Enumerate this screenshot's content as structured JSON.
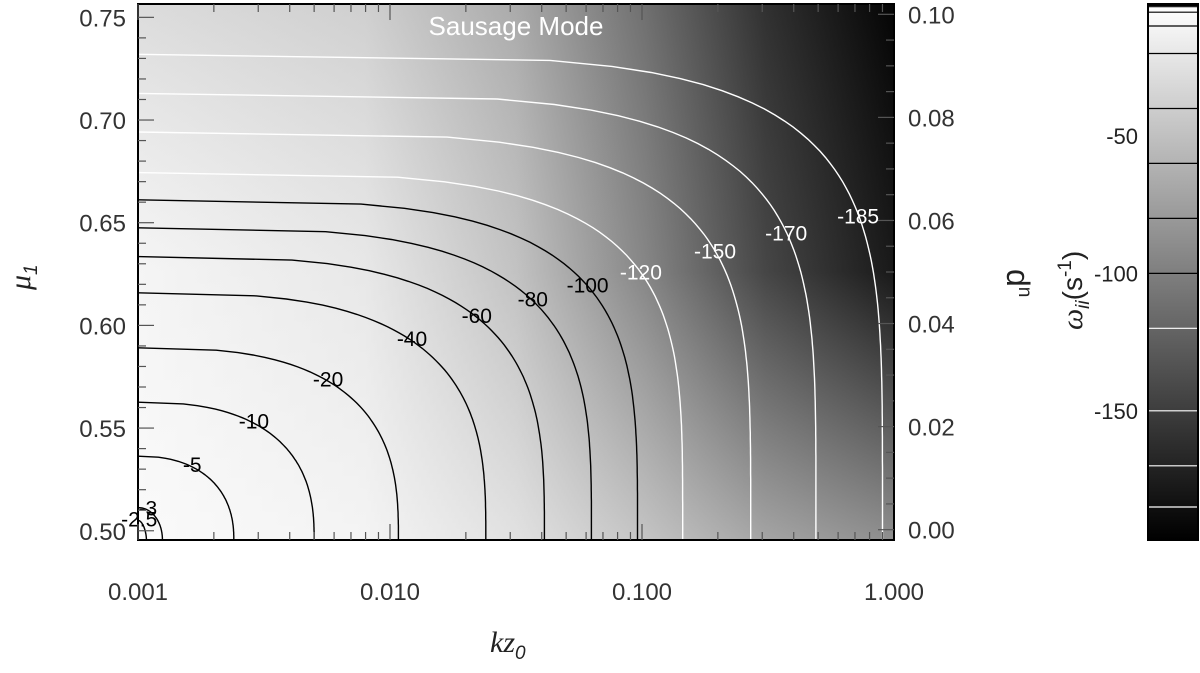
{
  "chart_data": {
    "type": "contour",
    "title": "Sausage Mode",
    "x_axis": {
      "label_main": "kz",
      "label_sub": "0",
      "scale": "log",
      "range": [
        0.001,
        1.0
      ],
      "ticks": [
        "0.001",
        "0.010",
        "0.100",
        "1.000"
      ],
      "tick_values": [
        0.001,
        0.01,
        0.1,
        1.0
      ]
    },
    "y_axis_left": {
      "label_main": "μ",
      "label_sub": "1",
      "range": [
        0.4955,
        0.7565
      ],
      "ticks": [
        "0.50",
        "0.55",
        "0.60",
        "0.65",
        "0.70",
        "0.75"
      ],
      "tick_values": [
        0.5,
        0.55,
        0.6,
        0.65,
        0.7,
        0.75
      ]
    },
    "y_axis_right": {
      "label_main": "d",
      "label_sub": "n",
      "range": [
        -0.002,
        0.102
      ],
      "ticks": [
        "0.00",
        "0.02",
        "0.04",
        "0.06",
        "0.08",
        "0.10"
      ],
      "tick_values": [
        0.0,
        0.02,
        0.04,
        0.06,
        0.08,
        0.1
      ]
    },
    "contours": [
      {
        "label": "-2.5",
        "x_at_bottom": 0.00108
      },
      {
        "label": "-3",
        "x_at_bottom": 0.00125
      },
      {
        "label": "-5",
        "x_at_bottom": 0.0024
      },
      {
        "label": "-10",
        "x_at_bottom": 0.005
      },
      {
        "label": "-20",
        "x_at_bottom": 0.0108
      },
      {
        "label": "-40",
        "x_at_bottom": 0.024
      },
      {
        "label": "-60",
        "x_at_bottom": 0.041
      },
      {
        "label": "-80",
        "x_at_bottom": 0.063
      },
      {
        "label": "-100",
        "x_at_bottom": 0.096
      },
      {
        "label": "-120",
        "x_at_bottom": 0.145
      },
      {
        "label": "-150",
        "x_at_bottom": 0.27
      },
      {
        "label": "-170",
        "x_at_bottom": 0.49
      },
      {
        "label": "-185",
        "x_at_bottom": 0.9
      }
    ],
    "colorbar": {
      "label_main": "ω",
      "label_sub": "ii",
      "label_unit": "(s",
      "label_exp": "-1",
      "label_close": ")",
      "range": [
        -197,
        -2
      ],
      "ticks": [
        "-50",
        "-100",
        "-150"
      ],
      "tick_values": [
        -50,
        -100,
        -150
      ],
      "colormap": "grayscale"
    }
  }
}
